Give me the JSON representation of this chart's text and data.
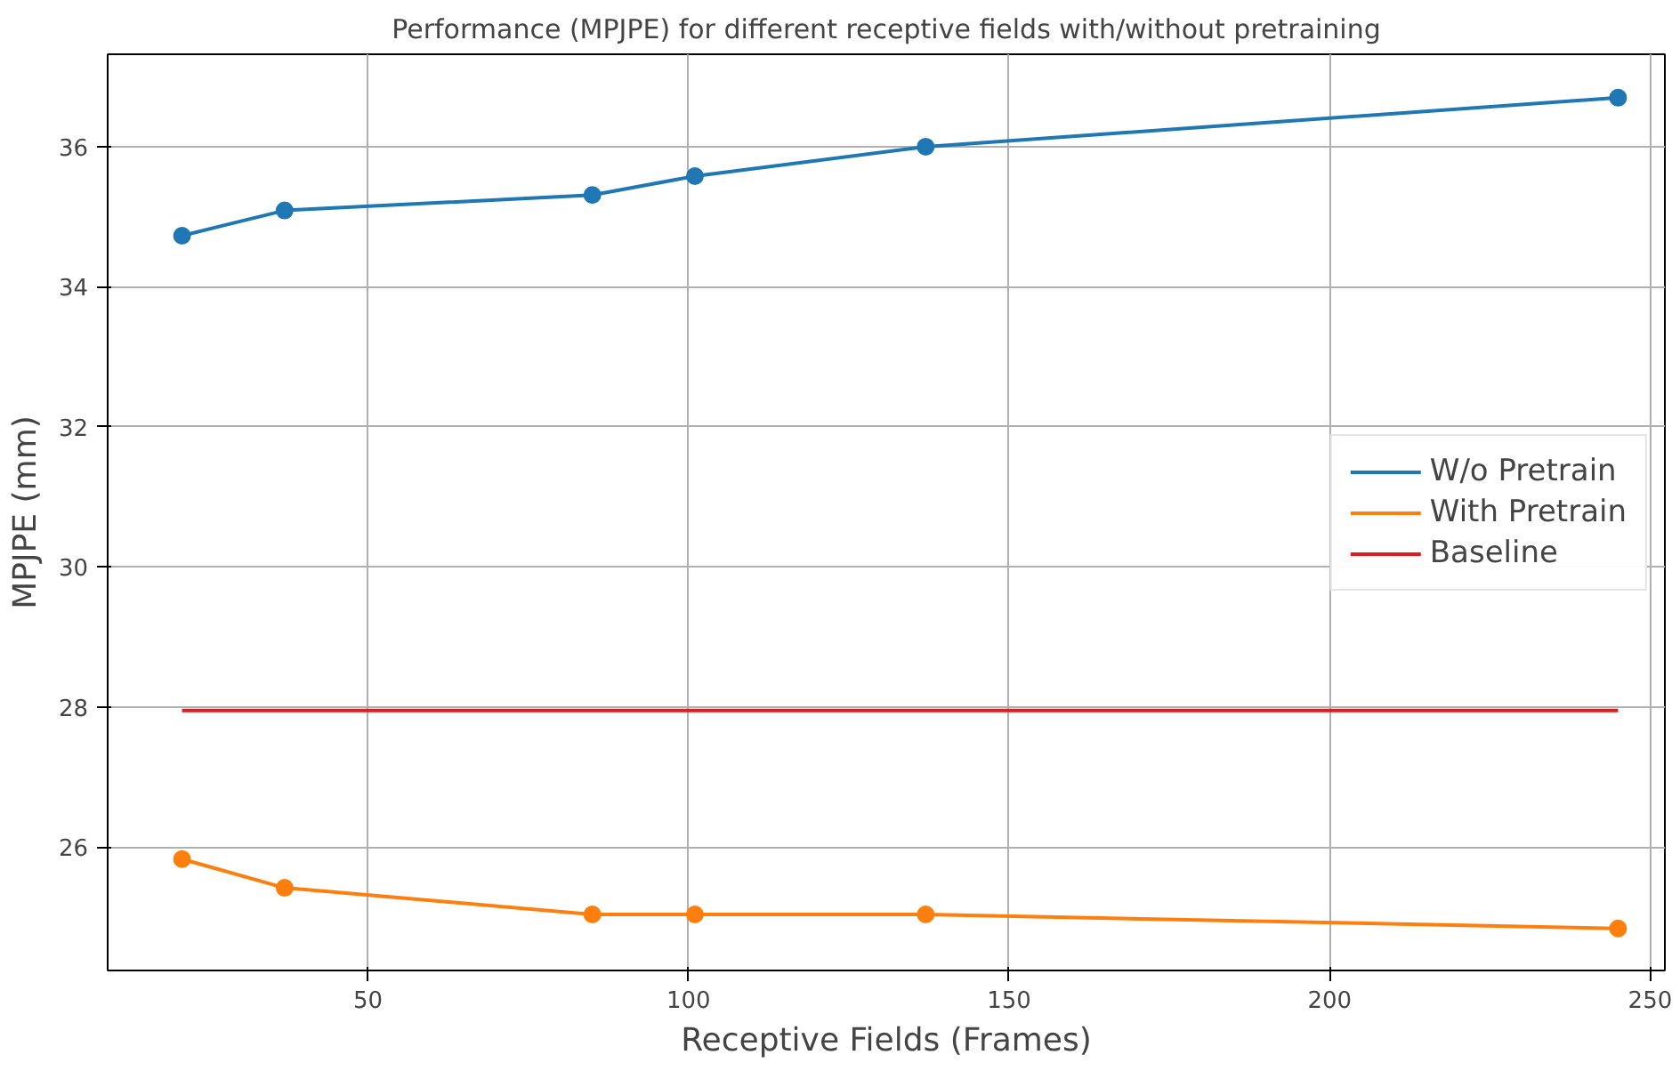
{
  "chart_data": {
    "type": "line",
    "title": "Performance (MPJPE) for different receptive fields with/without pretraining",
    "xlabel": "Receptive Fields (Frames)",
    "ylabel": "MPJPE (mm)",
    "x": [
      21,
      37,
      85,
      101,
      137,
      245
    ],
    "series": [
      {
        "name": "W/o Pretrain",
        "color": "#1f77b4",
        "values": [
          34.73,
          35.09,
          35.31,
          35.58,
          36.0,
          36.7
        ],
        "marker": "circle"
      },
      {
        "name": "With Pretrain",
        "color": "#ff7f0e",
        "values": [
          25.83,
          25.42,
          25.04,
          25.04,
          25.04,
          24.84
        ],
        "marker": "circle"
      },
      {
        "name": "Baseline",
        "color": "#e41a1c",
        "x": [
          21,
          245
        ],
        "values": [
          27.95,
          27.95
        ],
        "marker": "none"
      }
    ],
    "xlim": [
      9.4,
      252.3
    ],
    "ylim": [
      24.24,
      37.32
    ],
    "xticks": [
      50,
      100,
      150,
      200,
      250
    ],
    "yticks": [
      26,
      28,
      30,
      32,
      34,
      36
    ],
    "grid": true,
    "legend": "right",
    "line_style": "solid"
  }
}
